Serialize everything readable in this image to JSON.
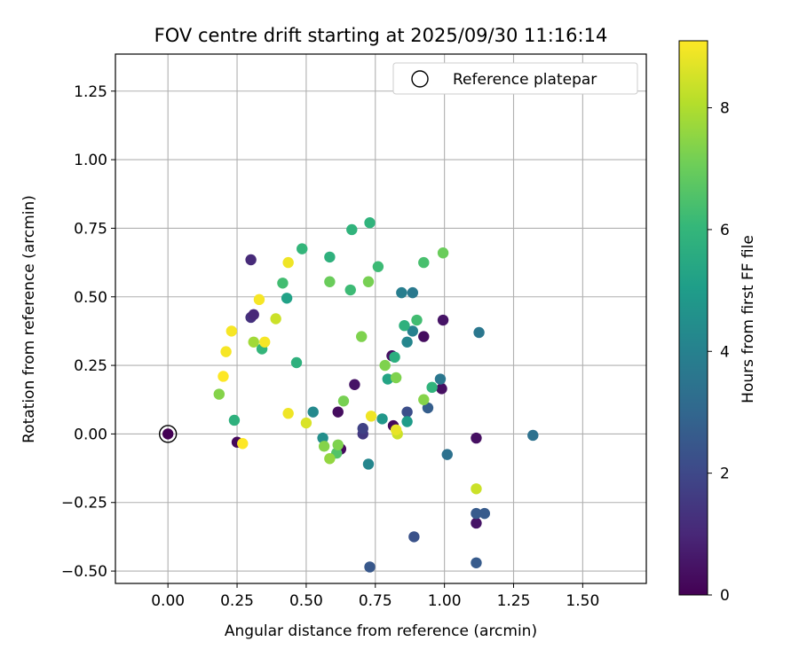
{
  "chart_data": {
    "type": "scatter",
    "title": "FOV centre drift starting at 2025/09/30 11:16:14",
    "xlabel": "Angular distance from reference (arcmin)",
    "ylabel": "Rotation from reference (arcmin)",
    "xlim": [
      -0.19,
      1.73
    ],
    "ylim": [
      -0.545,
      1.385
    ],
    "grid": true,
    "xticks": [
      0.0,
      0.25,
      0.5,
      0.75,
      1.0,
      1.25,
      1.5
    ],
    "xtick_labels": [
      "0.00",
      "0.25",
      "0.50",
      "0.75",
      "1.00",
      "1.25",
      "1.50"
    ],
    "yticks": [
      -0.5,
      -0.25,
      0.0,
      0.25,
      0.5,
      0.75,
      1.0,
      1.25
    ],
    "ytick_labels": [
      "−0.50",
      "−0.25",
      "0.00",
      "0.25",
      "0.50",
      "0.75",
      "1.00",
      "1.25"
    ],
    "legend": {
      "placement": "top-right",
      "label": "Reference platepar"
    },
    "reference_point": {
      "x": 0.0,
      "y": 0.0
    },
    "colorbar": {
      "label": "Hours from first FF file",
      "range": [
        0,
        9.1
      ],
      "ticks": [
        0,
        2,
        4,
        6,
        8
      ],
      "tick_labels": [
        "0",
        "2",
        "4",
        "6",
        "8"
      ],
      "colormap": [
        "#440154",
        "#482878",
        "#3e4989",
        "#31688e",
        "#26828e",
        "#1f9e89",
        "#35b779",
        "#6ece58",
        "#b5de2b",
        "#fde725"
      ]
    },
    "points": [
      {
        "x": 0.0,
        "y": 0.0,
        "hours": 0.0
      },
      {
        "x": 0.25,
        "y": -0.03,
        "hours": 0.2
      },
      {
        "x": 0.3,
        "y": 0.635,
        "hours": 1.1
      },
      {
        "x": 0.3,
        "y": 0.425,
        "hours": 1.3
      },
      {
        "x": 0.31,
        "y": 0.435,
        "hours": 1.0
      },
      {
        "x": 0.615,
        "y": 0.08,
        "hours": 0.3
      },
      {
        "x": 0.625,
        "y": -0.055,
        "hours": 0.2
      },
      {
        "x": 0.675,
        "y": 0.18,
        "hours": 0.5
      },
      {
        "x": 0.705,
        "y": 0.0,
        "hours": 1.5
      },
      {
        "x": 0.705,
        "y": 0.02,
        "hours": 1.8
      },
      {
        "x": 0.81,
        "y": 0.285,
        "hours": 0.4
      },
      {
        "x": 0.815,
        "y": 0.03,
        "hours": 0.2
      },
      {
        "x": 0.925,
        "y": 0.355,
        "hours": 0.3
      },
      {
        "x": 0.99,
        "y": 0.165,
        "hours": 0.4
      },
      {
        "x": 0.995,
        "y": 0.415,
        "hours": 0.5
      },
      {
        "x": 1.115,
        "y": -0.015,
        "hours": 0.4
      },
      {
        "x": 1.115,
        "y": -0.325,
        "hours": 0.5
      },
      {
        "x": 1.115,
        "y": -0.29,
        "hours": 2.6
      },
      {
        "x": 1.145,
        "y": -0.29,
        "hours": 2.6
      },
      {
        "x": 1.115,
        "y": -0.47,
        "hours": 2.6
      },
      {
        "x": 0.73,
        "y": -0.485,
        "hours": 2.5
      },
      {
        "x": 0.89,
        "y": -0.375,
        "hours": 2.3
      },
      {
        "x": 0.865,
        "y": 0.08,
        "hours": 2.2
      },
      {
        "x": 0.94,
        "y": 0.095,
        "hours": 2.7
      },
      {
        "x": 0.985,
        "y": 0.2,
        "hours": 3.6
      },
      {
        "x": 1.125,
        "y": 0.37,
        "hours": 3.6
      },
      {
        "x": 1.32,
        "y": -0.005,
        "hours": 3.4
      },
      {
        "x": 1.01,
        "y": -0.075,
        "hours": 3.4
      },
      {
        "x": 0.725,
        "y": -0.11,
        "hours": 4.2
      },
      {
        "x": 0.845,
        "y": 0.515,
        "hours": 3.9
      },
      {
        "x": 0.885,
        "y": 0.515,
        "hours": 3.7
      },
      {
        "x": 0.885,
        "y": 0.375,
        "hours": 4.0
      },
      {
        "x": 0.865,
        "y": 0.335,
        "hours": 4.2
      },
      {
        "x": 0.525,
        "y": 0.08,
        "hours": 4.3
      },
      {
        "x": 0.56,
        "y": -0.015,
        "hours": 4.5
      },
      {
        "x": 0.775,
        "y": 0.055,
        "hours": 4.8
      },
      {
        "x": 0.865,
        "y": 0.045,
        "hours": 5.0
      },
      {
        "x": 0.43,
        "y": 0.495,
        "hours": 5.2
      },
      {
        "x": 0.795,
        "y": 0.2,
        "hours": 5.3
      },
      {
        "x": 0.82,
        "y": 0.28,
        "hours": 5.7
      },
      {
        "x": 0.855,
        "y": 0.395,
        "hours": 5.8
      },
      {
        "x": 0.955,
        "y": 0.17,
        "hours": 5.9
      },
      {
        "x": 0.34,
        "y": 0.31,
        "hours": 6.0
      },
      {
        "x": 0.24,
        "y": 0.05,
        "hours": 5.8
      },
      {
        "x": 0.465,
        "y": 0.26,
        "hours": 5.8
      },
      {
        "x": 0.485,
        "y": 0.675,
        "hours": 6.0
      },
      {
        "x": 0.585,
        "y": 0.645,
        "hours": 5.8
      },
      {
        "x": 0.665,
        "y": 0.745,
        "hours": 5.9
      },
      {
        "x": 0.73,
        "y": 0.77,
        "hours": 5.9
      },
      {
        "x": 0.76,
        "y": 0.61,
        "hours": 6.2
      },
      {
        "x": 0.66,
        "y": 0.525,
        "hours": 6.2
      },
      {
        "x": 0.415,
        "y": 0.55,
        "hours": 6.3
      },
      {
        "x": 0.9,
        "y": 0.415,
        "hours": 6.3
      },
      {
        "x": 0.925,
        "y": 0.625,
        "hours": 6.4
      },
      {
        "x": 0.61,
        "y": -0.07,
        "hours": 6.6
      },
      {
        "x": 0.585,
        "y": 0.555,
        "hours": 7.0
      },
      {
        "x": 0.995,
        "y": 0.66,
        "hours": 7.0
      },
      {
        "x": 0.725,
        "y": 0.555,
        "hours": 7.2
      },
      {
        "x": 0.7,
        "y": 0.355,
        "hours": 7.3
      },
      {
        "x": 0.785,
        "y": 0.25,
        "hours": 7.3
      },
      {
        "x": 0.825,
        "y": 0.205,
        "hours": 7.3
      },
      {
        "x": 0.925,
        "y": 0.125,
        "hours": 7.4
      },
      {
        "x": 0.635,
        "y": 0.12,
        "hours": 7.2
      },
      {
        "x": 0.615,
        "y": -0.04,
        "hours": 7.3
      },
      {
        "x": 0.565,
        "y": -0.045,
        "hours": 7.4
      },
      {
        "x": 0.585,
        "y": -0.09,
        "hours": 7.6
      },
      {
        "x": 0.185,
        "y": 0.145,
        "hours": 7.4
      },
      {
        "x": 0.31,
        "y": 0.335,
        "hours": 7.8
      },
      {
        "x": 0.39,
        "y": 0.42,
        "hours": 8.4
      },
      {
        "x": 0.5,
        "y": 0.04,
        "hours": 8.6
      },
      {
        "x": 0.83,
        "y": 0.0,
        "hours": 8.4
      },
      {
        "x": 1.115,
        "y": -0.2,
        "hours": 8.4
      },
      {
        "x": 0.735,
        "y": 0.065,
        "hours": 8.9
      },
      {
        "x": 0.825,
        "y": 0.015,
        "hours": 8.8
      },
      {
        "x": 0.435,
        "y": 0.075,
        "hours": 8.9
      },
      {
        "x": 0.435,
        "y": 0.625,
        "hours": 8.9
      },
      {
        "x": 0.35,
        "y": 0.335,
        "hours": 9.0
      },
      {
        "x": 0.33,
        "y": 0.49,
        "hours": 9.0
      },
      {
        "x": 0.23,
        "y": 0.375,
        "hours": 9.0
      },
      {
        "x": 0.21,
        "y": 0.3,
        "hours": 9.0
      },
      {
        "x": 0.2,
        "y": 0.21,
        "hours": 9.1
      },
      {
        "x": 0.27,
        "y": -0.035,
        "hours": 9.1
      }
    ]
  }
}
